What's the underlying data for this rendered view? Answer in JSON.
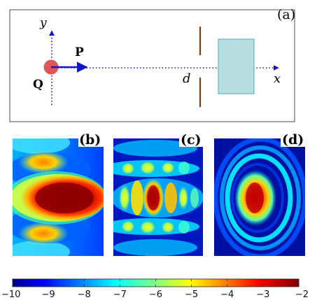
{
  "panels": {
    "a": {
      "label": "(a)",
      "axis_y": "y",
      "axis_x": "x",
      "point_q": "Q",
      "vector_p": "P",
      "distance": "d"
    },
    "b": {
      "label": "(b)"
    },
    "c": {
      "label": "(c)"
    },
    "d": {
      "label": "(d)"
    }
  },
  "colorbar": {
    "colormap": "jet",
    "ticks": [
      "−10",
      "−9",
      "−8",
      "−7",
      "−6",
      "−5",
      "−4",
      "−3",
      "−2"
    ],
    "range": [
      -10,
      -2
    ]
  },
  "colors": {
    "source_dot": "#e05555",
    "vector": "#1414c8",
    "slit_wall": "#8b3a0f",
    "target_box_fill": "#b7dde0",
    "target_box_stroke": "#63b8bf",
    "frame": "#777777"
  }
}
